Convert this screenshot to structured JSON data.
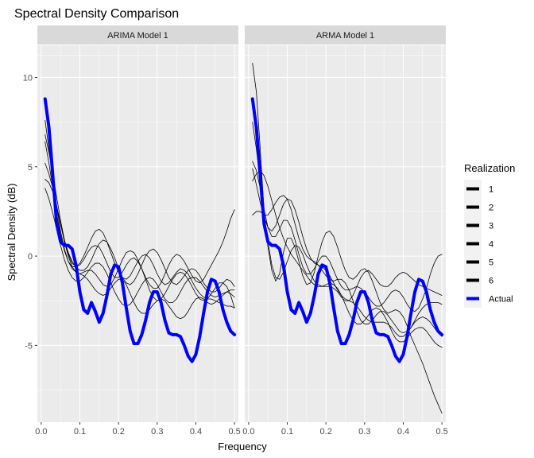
{
  "chart_data": {
    "type": "line",
    "title": "Spectral Density Comparison",
    "xlabel": "Frequency",
    "ylabel": "Spectral Density (dB)",
    "xlim": [
      -0.01,
      0.51
    ],
    "ylim": [
      -9.3,
      11.8
    ],
    "x_ticks": [
      0.0,
      0.1,
      0.2,
      0.3,
      0.4,
      0.5
    ],
    "x_tick_labels": [
      "0.0",
      "0.1",
      "0.2",
      "0.3",
      "0.4",
      "0.5"
    ],
    "y_ticks": [
      -5,
      0,
      5,
      10
    ],
    "y_tick_labels": [
      "-5",
      "0",
      "5",
      "10"
    ],
    "grid": true,
    "legend": {
      "title": "Realization",
      "position": "right",
      "entries": [
        {
          "label": "1",
          "color": "#000000"
        },
        {
          "label": "2",
          "color": "#000000"
        },
        {
          "label": "3",
          "color": "#000000"
        },
        {
          "label": "4",
          "color": "#000000"
        },
        {
          "label": "5",
          "color": "#000000"
        },
        {
          "label": "6",
          "color": "#000000"
        },
        {
          "label": "Actual",
          "color": "#0000ff"
        }
      ]
    },
    "x": [
      0.01,
      0.02,
      0.03,
      0.04,
      0.05,
      0.06,
      0.07,
      0.08,
      0.09,
      0.1,
      0.11,
      0.12,
      0.13,
      0.14,
      0.15,
      0.16,
      0.17,
      0.18,
      0.19,
      0.2,
      0.21,
      0.22,
      0.23,
      0.24,
      0.25,
      0.26,
      0.27,
      0.28,
      0.29,
      0.3,
      0.31,
      0.32,
      0.33,
      0.34,
      0.35,
      0.36,
      0.37,
      0.38,
      0.39,
      0.4,
      0.41,
      0.42,
      0.43,
      0.44,
      0.45,
      0.46,
      0.47,
      0.48,
      0.49,
      0.5
    ],
    "panels": [
      {
        "label": "ARIMA Model 1",
        "series": [
          {
            "name": "1",
            "color": "#000000",
            "values": [
              7.6,
              6.0,
              4.4,
              2.8,
              1.4,
              0.4,
              -0.3,
              -0.6,
              -0.6,
              -0.4,
              0.0,
              0.5,
              1.0,
              1.4,
              1.5,
              1.3,
              0.8,
              0.2,
              -0.4,
              -0.9,
              -1.2,
              -1.3,
              -1.1,
              -0.7,
              -0.3,
              0.0,
              0.1,
              -0.1,
              -0.5,
              -1.0,
              -1.4,
              -1.6,
              -1.5,
              -1.2,
              -0.9,
              -0.7,
              -0.8,
              -1.0,
              -1.4,
              -1.8,
              -2.1,
              -2.3,
              -2.4,
              -2.4,
              -2.5,
              -2.6,
              -2.7,
              -2.8,
              -2.8,
              -2.9
            ]
          },
          {
            "name": "2",
            "color": "#000000",
            "values": [
              6.8,
              5.8,
              4.6,
              3.3,
              2.0,
              0.9,
              0.1,
              -0.4,
              -0.6,
              -0.5,
              -0.2,
              0.2,
              0.5,
              0.6,
              0.5,
              0.1,
              -0.4,
              -0.9,
              -1.2,
              -1.2,
              -0.9,
              -0.5,
              -0.2,
              -0.1,
              -0.3,
              -0.7,
              -1.2,
              -1.6,
              -1.8,
              -1.8,
              -1.5,
              -1.0,
              -0.5,
              -0.1,
              0.1,
              0.0,
              -0.3,
              -0.7,
              -1.1,
              -1.4,
              -1.5,
              -1.3,
              -0.9,
              -0.5,
              -0.1,
              0.3,
              0.8,
              1.4,
              2.1,
              2.6
            ]
          },
          {
            "name": "3",
            "color": "#000000",
            "values": [
              5.2,
              4.6,
              3.8,
              2.8,
              1.8,
              0.9,
              0.2,
              -0.3,
              -0.6,
              -0.8,
              -0.8,
              -0.6,
              -0.2,
              0.3,
              0.7,
              0.9,
              0.8,
              0.4,
              -0.1,
              -0.7,
              -1.2,
              -1.5,
              -1.6,
              -1.4,
              -1.0,
              -0.5,
              0.0,
              0.3,
              0.4,
              0.2,
              -0.2,
              -0.7,
              -1.2,
              -1.5,
              -1.6,
              -1.4,
              -1.1,
              -0.8,
              -0.7,
              -0.8,
              -1.1,
              -1.5,
              -1.8,
              -2.0,
              -2.0,
              -1.8,
              -1.5,
              -1.3,
              -1.4,
              -1.7
            ]
          },
          {
            "name": "4",
            "color": "#000000",
            "values": [
              4.3,
              4.1,
              3.6,
              2.8,
              1.8,
              0.8,
              0.0,
              -0.6,
              -0.9,
              -1.0,
              -0.9,
              -0.8,
              -0.8,
              -1.0,
              -1.3,
              -1.6,
              -1.7,
              -1.6,
              -1.2,
              -0.7,
              -0.2,
              0.2,
              0.3,
              0.2,
              -0.2,
              -0.7,
              -1.3,
              -1.9,
              -2.3,
              -2.5,
              -2.4,
              -2.1,
              -1.7,
              -1.3,
              -1.0,
              -0.9,
              -1.0,
              -1.3,
              -1.7,
              -2.1,
              -2.4,
              -2.5,
              -2.4,
              -2.1,
              -1.8,
              -1.5,
              -1.5,
              -1.7,
              -2.2,
              -2.9
            ]
          },
          {
            "name": "5",
            "color": "#000000",
            "values": [
              3.8,
              3.2,
              2.4,
              1.5,
              0.6,
              -0.2,
              -0.8,
              -1.2,
              -1.4,
              -1.4,
              -1.2,
              -0.9,
              -0.6,
              -0.4,
              -0.4,
              -0.6,
              -1.0,
              -1.5,
              -2.0,
              -2.4,
              -2.7,
              -2.8,
              -2.7,
              -2.4,
              -2.0,
              -1.6,
              -1.3,
              -1.2,
              -1.3,
              -1.6,
              -2.0,
              -2.4,
              -2.6,
              -2.6,
              -2.4,
              -2.0,
              -1.6,
              -1.3,
              -1.2,
              -1.2,
              -1.4,
              -1.7,
              -2.0,
              -2.2,
              -2.3,
              -2.2,
              -2.1,
              -2.0,
              -2.1,
              -2.3
            ]
          },
          {
            "name": "6",
            "color": "#000000",
            "values": [
              6.4,
              5.2,
              3.8,
              2.4,
              1.2,
              0.3,
              -0.3,
              -0.7,
              -0.9,
              -1.0,
              -1.1,
              -1.3,
              -1.6,
              -1.9,
              -2.1,
              -2.2,
              -2.1,
              -1.8,
              -1.5,
              -1.3,
              -1.3,
              -1.6,
              -2.1,
              -2.6,
              -3.0,
              -3.2,
              -3.2,
              -3.0,
              -2.7,
              -2.5,
              -2.4,
              -2.5,
              -2.8,
              -3.1,
              -3.4,
              -3.5,
              -3.4,
              -3.1,
              -2.7,
              -2.4,
              -2.3,
              -2.4,
              -2.6,
              -2.7,
              -2.6,
              -2.4,
              -2.2,
              -2.0,
              -1.9,
              -1.9
            ]
          },
          {
            "name": "Actual",
            "color": "#0000ff",
            "values": [
              8.8,
              7.2,
              4.5,
              1.8,
              0.8,
              0.6,
              0.6,
              0.4,
              -0.5,
              -2.0,
              -3.0,
              -3.2,
              -2.6,
              -3.1,
              -3.7,
              -3.2,
              -2.2,
              -1.0,
              -0.5,
              -0.6,
              -1.5,
              -2.9,
              -4.2,
              -4.9,
              -4.9,
              -4.4,
              -3.6,
              -2.6,
              -2.0,
              -2.0,
              -2.6,
              -3.6,
              -4.3,
              -4.4,
              -4.4,
              -4.5,
              -5.0,
              -5.6,
              -5.9,
              -5.5,
              -4.5,
              -3.2,
              -2.0,
              -1.3,
              -1.4,
              -2.0,
              -3.0,
              -3.7,
              -4.2,
              -4.4
            ]
          }
        ]
      },
      {
        "label": "ARMA Model 1",
        "series": [
          {
            "name": "1",
            "color": "#000000",
            "values": [
              10.8,
              9.2,
              6.0,
              2.5,
              0.5,
              -0.8,
              -1.4,
              -1.0,
              0.2,
              1.0,
              1.0,
              0.5,
              -0.3,
              -1.1,
              -1.6,
              -1.5,
              -0.9,
              0.0,
              0.8,
              1.3,
              1.4,
              1.1,
              0.5,
              -0.2,
              -0.8,
              -1.2,
              -1.3,
              -1.1,
              -0.8,
              -0.7,
              -0.9,
              -1.4,
              -2.0,
              -2.6,
              -3.0,
              -3.2,
              -3.1,
              -3.0,
              -3.1,
              -3.4,
              -3.9,
              -4.5,
              -5.0,
              -5.5,
              -6.0,
              -6.6,
              -7.2,
              -7.8,
              -8.3,
              -8.8
            ]
          },
          {
            "name": "2",
            "color": "#000000",
            "values": [
              5.3,
              4.8,
              3.8,
              2.6,
              1.6,
              1.1,
              1.1,
              1.5,
              2.0,
              2.0,
              1.6,
              0.9,
              0.1,
              -0.6,
              -1.0,
              -1.0,
              -0.7,
              -0.3,
              0.0,
              0.0,
              -0.3,
              -0.8,
              -1.3,
              -1.7,
              -1.9,
              -1.9,
              -1.8,
              -1.7,
              -1.8,
              -2.0,
              -2.3,
              -2.6,
              -2.8,
              -2.8,
              -2.6,
              -2.3,
              -2.0,
              -1.9,
              -2.0,
              -2.3,
              -2.7,
              -3.0,
              -3.1,
              -2.9,
              -2.4,
              -1.8,
              -1.0,
              -0.4,
              0.0,
              0.1
            ]
          },
          {
            "name": "3",
            "color": "#000000",
            "values": [
              2.3,
              2.5,
              2.5,
              2.3,
              2.3,
              2.6,
              3.0,
              3.3,
              3.4,
              3.2,
              2.6,
              1.8,
              1.0,
              0.4,
              0.0,
              -0.2,
              -0.3,
              -0.5,
              -0.8,
              -1.1,
              -1.3,
              -1.4,
              -1.3,
              -1.3,
              -1.5,
              -1.9,
              -2.5,
              -3.1,
              -3.6,
              -3.8,
              -3.8,
              -3.6,
              -3.3,
              -3.1,
              -3.1,
              -3.3,
              -3.6,
              -3.9,
              -4.2,
              -4.3,
              -4.2,
              -4.0,
              -3.7,
              -3.5,
              -3.4,
              -3.5,
              -3.7,
              -4.0,
              -4.3,
              -4.5
            ]
          },
          {
            "name": "4",
            "color": "#000000",
            "values": [
              4.9,
              4.0,
              3.0,
              2.2,
              1.6,
              1.4,
              1.7,
              2.3,
              2.9,
              3.2,
              3.1,
              2.6,
              1.9,
              1.1,
              0.4,
              -0.1,
              -0.4,
              -0.5,
              -0.6,
              -0.8,
              -1.1,
              -1.5,
              -1.9,
              -2.2,
              -2.4,
              -2.5,
              -2.6,
              -2.8,
              -3.1,
              -3.4,
              -3.6,
              -3.7,
              -3.7,
              -3.7,
              -3.7,
              -3.8,
              -4.0,
              -4.3,
              -4.5,
              -4.5,
              -4.3,
              -4.0,
              -3.6,
              -3.2,
              -2.9,
              -2.7,
              -2.6,
              -2.6,
              -2.6,
              -2.7
            ]
          },
          {
            "name": "5",
            "color": "#000000",
            "values": [
              4.2,
              4.6,
              4.8,
              4.5,
              3.9,
              3.1,
              2.3,
              1.6,
              1.0,
              0.5,
              0.1,
              -0.2,
              -0.5,
              -0.8,
              -1.1,
              -1.4,
              -1.6,
              -1.7,
              -1.7,
              -1.6,
              -1.5,
              -1.6,
              -1.8,
              -2.2,
              -2.7,
              -3.2,
              -3.6,
              -3.8,
              -3.8,
              -3.6,
              -3.3,
              -3.0,
              -2.9,
              -3.0,
              -3.3,
              -3.7,
              -4.2,
              -4.6,
              -4.8,
              -4.8,
              -4.6,
              -4.3,
              -4.1,
              -4.0,
              -4.0,
              -4.2,
              -4.5,
              -4.8,
              -5.0,
              -5.1
            ]
          },
          {
            "name": "6",
            "color": "#000000",
            "values": [
              7.5,
              6.0,
              4.2,
              2.4,
              0.8,
              -0.5,
              -1.2,
              -1.3,
              -0.9,
              -0.3,
              0.3,
              0.6,
              0.5,
              0.1,
              -0.5,
              -1.0,
              -1.4,
              -1.6,
              -1.7,
              -1.7,
              -1.7,
              -1.8,
              -2.0,
              -2.3,
              -2.5,
              -2.5,
              -2.2,
              -1.7,
              -1.2,
              -0.9,
              -0.8,
              -1.0,
              -1.3,
              -1.6,
              -1.7,
              -1.7,
              -1.5,
              -1.2,
              -1.0,
              -0.9,
              -1.0,
              -1.2,
              -1.4,
              -1.6,
              -1.7,
              -1.8,
              -1.9,
              -2.0,
              -2.1,
              -2.2
            ]
          },
          {
            "name": "Actual",
            "color": "#0000ff",
            "values": [
              8.8,
              7.2,
              4.5,
              1.8,
              0.8,
              0.6,
              0.6,
              0.4,
              -0.5,
              -2.0,
              -3.0,
              -3.2,
              -2.6,
              -3.1,
              -3.7,
              -3.2,
              -2.2,
              -1.0,
              -0.5,
              -0.6,
              -1.5,
              -2.9,
              -4.2,
              -4.9,
              -4.9,
              -4.4,
              -3.6,
              -2.6,
              -2.0,
              -2.0,
              -2.6,
              -3.6,
              -4.3,
              -4.4,
              -4.4,
              -4.5,
              -5.0,
              -5.6,
              -5.9,
              -5.5,
              -4.5,
              -3.2,
              -2.0,
              -1.3,
              -1.4,
              -2.0,
              -3.0,
              -3.7,
              -4.2,
              -4.4
            ]
          }
        ]
      }
    ]
  }
}
